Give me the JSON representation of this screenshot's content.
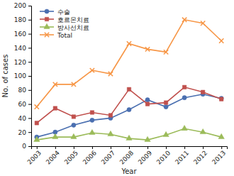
{
  "chart_data": {
    "type": "line",
    "x_label": "Year",
    "y_label": "No. of cases",
    "categories": [
      "2003",
      "2004",
      "2005",
      "2006",
      "2007",
      "2008",
      "2009",
      "2010",
      "2011",
      "2012",
      "2013"
    ],
    "series": [
      {
        "name": "수술",
        "color": "#4a6fb0",
        "marker": "circle",
        "line_style": "solid",
        "values": [
          13,
          20,
          30,
          37,
          40,
          52,
          66,
          56,
          69,
          74,
          68
        ]
      },
      {
        "name": "호르몬치료",
        "color": "#c0504d",
        "marker": "square",
        "line_style": "solid",
        "values": [
          33,
          54,
          42,
          48,
          44,
          81,
          60,
          62,
          84,
          77,
          67
        ]
      },
      {
        "name": "방사선치료",
        "color": "#9bbb59",
        "marker": "triangle",
        "line_style": "solid",
        "values": [
          9,
          13,
          13,
          19,
          17,
          11,
          9,
          16,
          25,
          20,
          13
        ]
      },
      {
        "name": "Total",
        "color": "#f79646",
        "marker": "x",
        "line_style": "solid",
        "values": [
          56,
          88,
          88,
          108,
          103,
          146,
          138,
          134,
          180,
          175,
          150
        ]
      }
    ],
    "ylim": [
      0,
      200
    ],
    "yticks": [
      0,
      20,
      40,
      60,
      80,
      100,
      120,
      140,
      160,
      180,
      200
    ],
    "grid": false,
    "legend": "upper left"
  }
}
